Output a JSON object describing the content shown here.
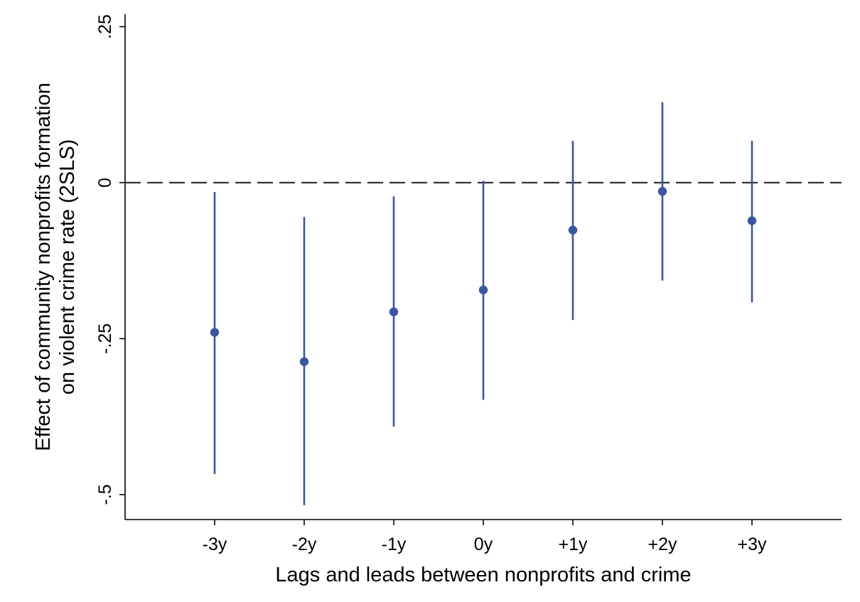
{
  "chart_data": {
    "type": "scatter",
    "subtype": "coefficient-plot-with-confidence-intervals",
    "title": "",
    "xlabel": "Lags and leads between nonprofits and crime",
    "ylabel_lines": [
      "Effect of community nonprofits formation",
      "on violent crime rate (2SLS)"
    ],
    "categories": [
      "-3y",
      "-2y",
      "-1y",
      "0y",
      "+1y",
      "+2y",
      "+3y"
    ],
    "series": [
      {
        "estimates": [
          -0.24,
          -0.287,
          -0.207,
          -0.172,
          -0.076,
          -0.014,
          -0.061
        ],
        "ci_lower": [
          -0.467,
          -0.517,
          -0.391,
          -0.348,
          -0.22,
          -0.157,
          -0.192
        ],
        "ci_upper": [
          -0.015,
          -0.055,
          -0.022,
          0.003,
          0.067,
          0.129,
          0.067
        ]
      }
    ],
    "reference_line": {
      "y": 0,
      "style": "dashed"
    },
    "ylim": [
      -0.54,
      0.27
    ],
    "yticks": [
      0.25,
      0,
      -0.25,
      -0.5
    ],
    "ytick_labels": [
      ".25",
      "0",
      "-.25",
      "-.5"
    ],
    "grid": false,
    "legend": "none",
    "colors": {
      "series": "#3a56a0",
      "reference_line": "#333333",
      "axis": "#000000"
    }
  }
}
